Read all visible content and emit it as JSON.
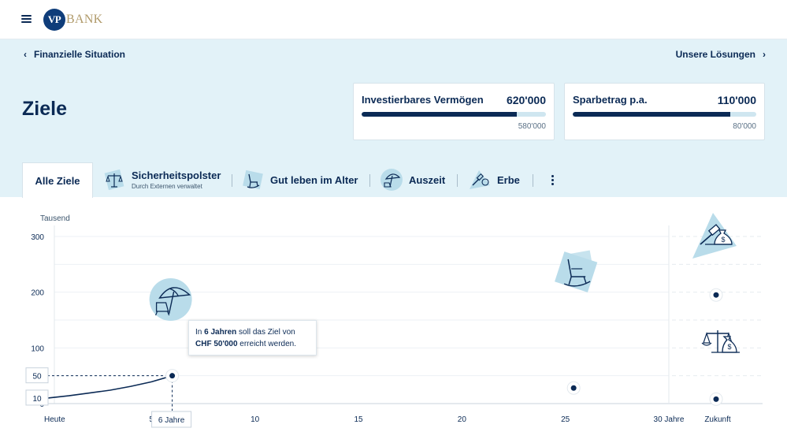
{
  "header": {
    "menu_icon": "hamburger-icon",
    "logo_badge": "VP",
    "logo_word": "BANK"
  },
  "nav": {
    "back_label": "Finanzielle Situation",
    "forward_label": "Unsere Lösungen"
  },
  "page": {
    "title": "Ziele"
  },
  "cards": [
    {
      "label": "Investierbares Vermögen",
      "value": "620'000",
      "sub": "580'000",
      "progress": 0.84
    },
    {
      "label": "Sparbetrag p.a.",
      "value": "110'000",
      "sub": "80'000",
      "progress": 0.86
    }
  ],
  "tabs": {
    "all_label": "Alle Ziele",
    "items": [
      {
        "label": "Sicherheitspolster",
        "sub": "Durch Externen verwaltet",
        "icon": "scales-money-icon"
      },
      {
        "label": "Gut leben im Alter",
        "sub": "",
        "icon": "rocking-chair-icon"
      },
      {
        "label": "Auszeit",
        "sub": "",
        "icon": "beach-umbrella-icon"
      },
      {
        "label": "Erbe",
        "sub": "",
        "icon": "gavel-moneybag-icon"
      }
    ],
    "more_icon": "more-vertical-icon"
  },
  "chart_data": {
    "type": "line",
    "ylabel": "Tausend",
    "yticks": [
      0,
      100,
      200,
      300
    ],
    "ylim": [
      0,
      300
    ],
    "xticks": [
      {
        "x": 0,
        "label": "Heute"
      },
      {
        "x": 5,
        "label": "5"
      },
      {
        "x": 10,
        "label": "10"
      },
      {
        "x": 15,
        "label": "15"
      },
      {
        "x": 20,
        "label": "20"
      },
      {
        "x": 25,
        "label": "25"
      },
      {
        "x": 30,
        "label": "30 Jahre"
      }
    ],
    "future_label": "Zukunft",
    "xlim": [
      0,
      30
    ],
    "grid": true,
    "series": [
      {
        "points": [
          [
            0,
            10
          ],
          [
            1,
            14
          ],
          [
            2,
            19
          ],
          [
            3,
            24
          ],
          [
            4,
            31
          ],
          [
            5,
            39
          ],
          [
            6,
            50
          ]
        ]
      }
    ],
    "markers": [
      {
        "x": 6,
        "y": 50,
        "icon": "beach-umbrella-icon",
        "highlight": true
      },
      {
        "x": 25.4,
        "y": 28,
        "icon": "rocking-chair-icon"
      },
      {
        "future": true,
        "y": 195,
        "icon": "gavel-moneybag-icon"
      },
      {
        "future": true,
        "y": 8,
        "icon": "scales-money-icon"
      }
    ],
    "value_boxes": [
      "50",
      "10"
    ],
    "x_box": "6 Jahre"
  },
  "tooltip": {
    "pre1": "In ",
    "bold1": "6 Jahren",
    "post1": " soll das Ziel von",
    "bold2": "CHF 50'000",
    "post2": " erreicht werden."
  },
  "colors": {
    "navy": "#0b2a55",
    "hero_bg": "#e2f2f8",
    "light_blue": "#b9dcea",
    "gold": "#b09a6a"
  }
}
